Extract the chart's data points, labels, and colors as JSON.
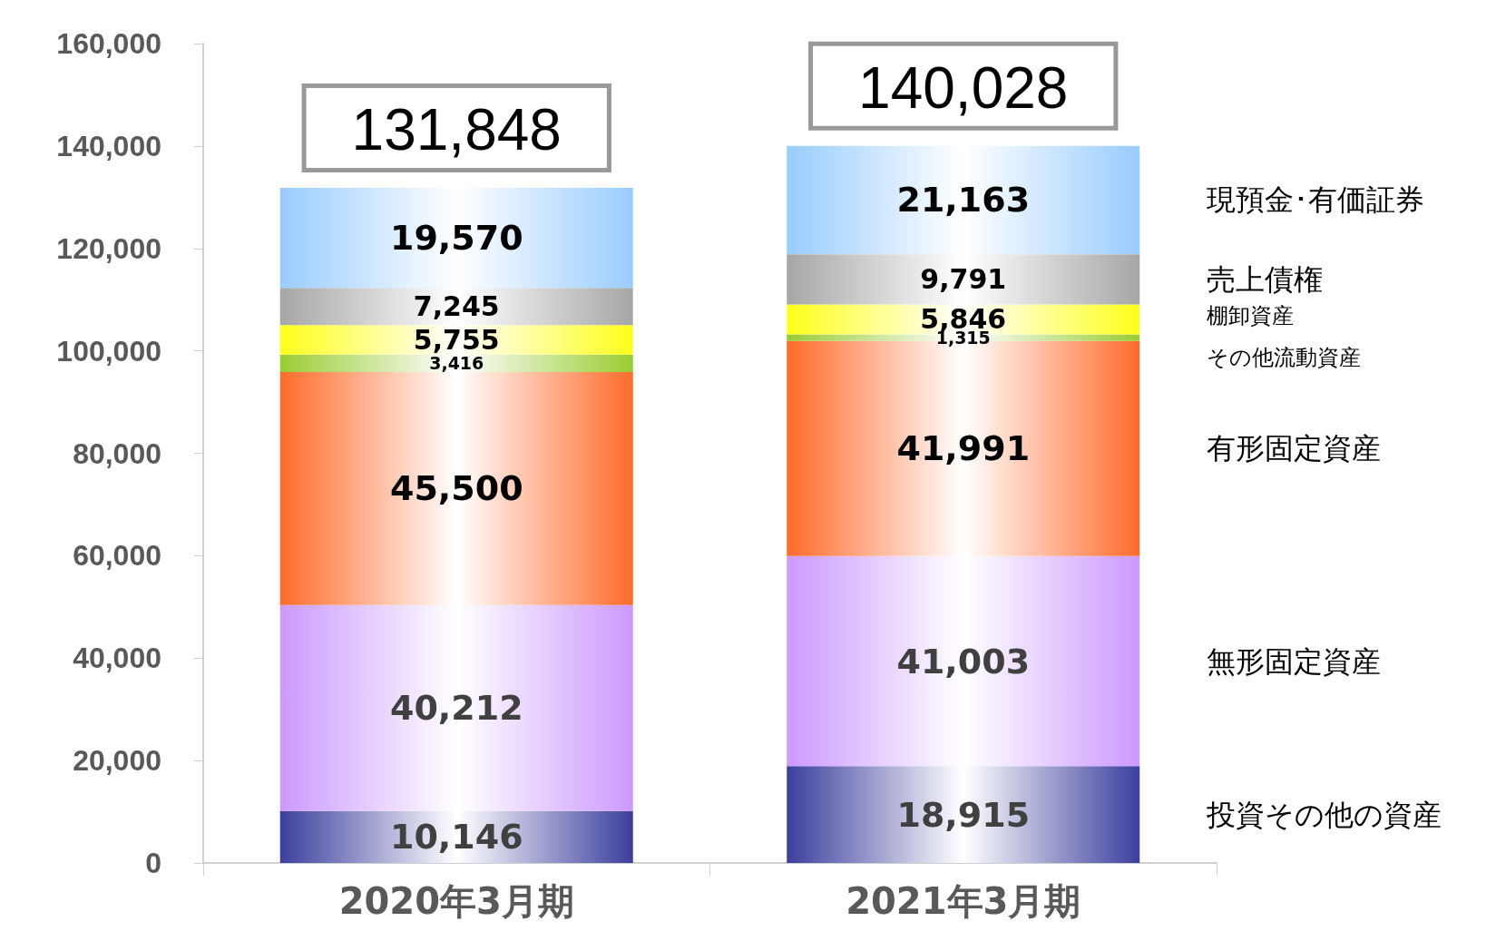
{
  "chart_data": {
    "type": "bar",
    "stacked": true,
    "categories": [
      "2020年3月期",
      "2021年3月期"
    ],
    "series": [
      {
        "name": "投資その他の資産",
        "color": "#3b3f9c",
        "values": [
          10146,
          18915
        ],
        "value_labels": [
          "10,146",
          "18,915"
        ]
      },
      {
        "name": "無形固定資産",
        "color": "#cc99ff",
        "values": [
          40212,
          41003
        ],
        "value_labels": [
          "40,212",
          "41,003"
        ]
      },
      {
        "name": "有形固定資産",
        "color": "#ff6a2a",
        "values": [
          45500,
          41991
        ],
        "value_labels": [
          "45,500",
          "41,991"
        ]
      },
      {
        "name": "その他流動資産",
        "color": "#99cc33",
        "values": [
          3416,
          1315
        ],
        "value_labels": [
          "3,416",
          "1,315"
        ]
      },
      {
        "name": "棚卸資産",
        "color": "#ffff1a",
        "values": [
          5755,
          5846
        ],
        "value_labels": [
          "5,755",
          "5,846"
        ]
      },
      {
        "name": "売上債権",
        "color": "#a6a6a6",
        "values": [
          7245,
          9791
        ],
        "value_labels": [
          "7,245",
          "9,791"
        ]
      },
      {
        "name": "現預金･有価証券",
        "color": "#99ccff",
        "values": [
          19570,
          21163
        ],
        "value_labels": [
          "19,570",
          "21,163"
        ]
      }
    ],
    "totals": [
      "131,848",
      "140,028"
    ],
    "ylim": [
      0,
      160000
    ],
    "yticks": [
      {
        "value": 0,
        "label": "0"
      },
      {
        "value": 20000,
        "label": "20,000"
      },
      {
        "value": 40000,
        "label": "40,000"
      },
      {
        "value": 60000,
        "label": "60,000"
      },
      {
        "value": 80000,
        "label": "80,000"
      },
      {
        "value": 100000,
        "label": "100,000"
      },
      {
        "value": 120000,
        "label": "120,000"
      },
      {
        "value": 140000,
        "label": "140,000"
      },
      {
        "value": 160000,
        "label": "160,000"
      }
    ],
    "grid": false,
    "legend": false
  }
}
